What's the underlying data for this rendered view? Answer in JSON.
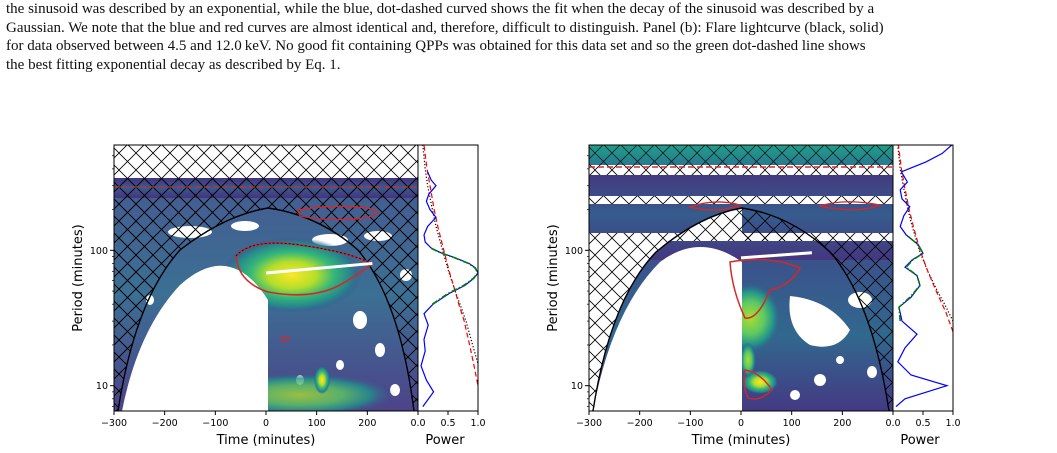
{
  "caption": {
    "lines": [
      "the sinusoid was described by an exponential, while the blue, dot-dashed curved shows the fit when the decay of the sinusoid was described by a",
      "Gaussian. We note that the blue and red curves are almost identical and, therefore, difficult to distinguish. Panel (b): Flare lightcurve (black, solid)",
      "for data observed between 4.5 and 12.0 keV. No good fit containing QPPs was obtained for this data set and so the green dot-dashed line shows",
      "the best fitting exponential decay as described by Eq. 1."
    ]
  },
  "colors": {
    "low": "#440154",
    "mid": "#21918c",
    "high": "#fde725",
    "contour_red": "#d62728",
    "fit_blue": "#0000ff",
    "fit_red": "#ff0000",
    "fit_green": "#008000"
  },
  "chart_data": [
    {
      "type": "heatmap",
      "xlabel": "Time (minutes)",
      "ylabel": "Period (minutes)",
      "x_ticks": [
        "−300",
        "−200",
        "−100",
        "0",
        "100",
        "200"
      ],
      "x_tick_values": [
        -300,
        -200,
        -100,
        0,
        100,
        200
      ],
      "y_ticks": [
        "10",
        "100"
      ],
      "y_tick_values": [
        10,
        100
      ],
      "y_scale": "log",
      "xlim": [
        -300,
        300
      ],
      "ylim": [
        6.5,
        600
      ],
      "ridge": {
        "x": [
          0,
          210
        ],
        "y": [
          68,
          80
        ]
      },
      "power_panel": {
        "xlabel": "Power",
        "x_ticks": [
          "0.0",
          "0.5",
          "1.0"
        ],
        "x_tick_values": [
          0.0,
          0.5,
          1.0
        ],
        "xlim": [
          0,
          1
        ],
        "blue": {
          "period": [
            7,
            9,
            11,
            14,
            18,
            22,
            28,
            34,
            40,
            48,
            55,
            62,
            68,
            74,
            80,
            88,
            96,
            104,
            115,
            130,
            150,
            175,
            200,
            230,
            260,
            300,
            330,
            380
          ],
          "power": [
            0.08,
            0.26,
            0.14,
            0.05,
            0.12,
            0.1,
            0.17,
            0.1,
            0.25,
            0.52,
            0.78,
            0.93,
            1.0,
            0.96,
            0.85,
            0.62,
            0.38,
            0.22,
            0.12,
            0.1,
            0.16,
            0.3,
            0.2,
            0.14,
            0.18,
            0.3,
            0.22,
            0.16
          ]
        },
        "green": {
          "period": [
            40,
            48,
            55,
            62,
            68,
            74,
            80,
            88,
            96,
            104
          ],
          "power": [
            0.24,
            0.5,
            0.76,
            0.92,
            1.0,
            0.95,
            0.84,
            0.61,
            0.37,
            0.21
          ]
        },
        "red_dashed": {
          "period": [
            7,
            10,
            15,
            20,
            30,
            40,
            50,
            70,
            100,
            150,
            200,
            300,
            400,
            600
          ],
          "power": [
            1.15,
            1.0,
            0.92,
            0.86,
            0.77,
            0.68,
            0.62,
            0.52,
            0.43,
            0.33,
            0.27,
            0.2,
            0.15,
            0.1
          ]
        },
        "black_dotted": {
          "period": [
            7,
            10,
            15,
            20,
            30,
            40,
            50,
            70,
            100,
            150,
            200,
            300,
            400,
            600
          ],
          "power": [
            1.3,
            1.1,
            0.99,
            0.91,
            0.8,
            0.7,
            0.62,
            0.51,
            0.41,
            0.3,
            0.24,
            0.16,
            0.12,
            0.08
          ]
        }
      }
    },
    {
      "type": "heatmap",
      "xlabel": "Time (minutes)",
      "ylabel": "Period (minutes)",
      "x_ticks": [
        "−300",
        "−200",
        "−100",
        "0",
        "100",
        "200"
      ],
      "x_tick_values": [
        -300,
        -200,
        -100,
        0,
        100,
        200
      ],
      "y_ticks": [
        "10",
        "100"
      ],
      "y_tick_values": [
        10,
        100
      ],
      "y_scale": "log",
      "xlim": [
        -300,
        300
      ],
      "ylim": [
        6.5,
        600
      ],
      "ridge": {
        "x": [
          0,
          140
        ],
        "y": [
          88,
          96
        ]
      },
      "power_panel": {
        "xlabel": "Power",
        "x_ticks": [
          "0.0",
          "0.5",
          "1.0"
        ],
        "x_tick_values": [
          0.0,
          0.5,
          1.0
        ],
        "xlim": [
          0,
          1
        ],
        "blue": {
          "period": [
            7,
            8,
            10,
            12,
            15,
            19,
            24,
            30,
            38,
            45,
            55,
            65,
            75,
            85,
            95,
            110,
            130,
            150,
            180,
            210,
            240,
            280,
            320,
            380,
            450,
            520,
            600
          ],
          "power": [
            0.05,
            0.2,
            0.9,
            0.3,
            0.08,
            0.2,
            0.4,
            0.15,
            0.1,
            0.3,
            0.45,
            0.4,
            0.2,
            0.32,
            0.5,
            0.42,
            0.22,
            0.12,
            0.18,
            0.28,
            0.15,
            0.12,
            0.24,
            0.14,
            0.55,
            0.82,
            0.98
          ]
        },
        "green": {
          "period": [
            30,
            38,
            45,
            55,
            65,
            75,
            85,
            95,
            110,
            130
          ],
          "power": [
            0.12,
            0.1,
            0.28,
            0.45,
            0.4,
            0.22,
            0.33,
            0.5,
            0.42,
            0.22
          ]
        },
        "red_dashed": {
          "period": [
            25,
            35,
            50,
            70,
            100,
            150,
            200,
            300,
            400,
            600
          ],
          "power": [
            1.0,
            0.88,
            0.72,
            0.58,
            0.45,
            0.34,
            0.27,
            0.19,
            0.14,
            0.09
          ]
        },
        "black_dotted": {
          "period": [
            30,
            40,
            50,
            70,
            100,
            150,
            200,
            300,
            400,
            600
          ],
          "power": [
            1.0,
            0.86,
            0.74,
            0.58,
            0.44,
            0.32,
            0.25,
            0.17,
            0.12,
            0.08
          ]
        }
      }
    }
  ]
}
